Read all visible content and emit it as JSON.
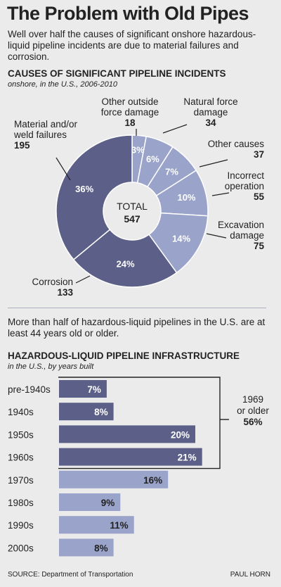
{
  "title": "The Problem with Old Pipes",
  "intro": "Well over half the causes of significant onshore hazardous-liquid pipeline incidents are due to material failures and corrosion.",
  "intro2": "More than half of hazardous-liquid pipelines in the U.S. are at least 44 years old or older.",
  "source": "SOURCE: Department of Transportation",
  "credit": "PAUL HORN",
  "colors": {
    "dark": "#5c5f87",
    "light": "#9aa3c9",
    "bg": "#ebebeb"
  },
  "chart_data": [
    {
      "type": "pie",
      "title": "CAUSES OF SIGNIFICANT PIPELINE INCIDENTS",
      "subtitle": "onshore, in the U.S., 2006-2010",
      "center_label": "TOTAL",
      "center_value": "547",
      "slices": [
        {
          "name_lines": [
            "Other outside",
            "force damage"
          ],
          "count": "18",
          "pct": "3%",
          "value": 3,
          "color": "#9aa3c9"
        },
        {
          "name_lines": [
            "Natural force",
            "damage"
          ],
          "count": "34",
          "pct": "6%",
          "value": 6,
          "color": "#9aa3c9"
        },
        {
          "name_lines": [
            "Other causes"
          ],
          "count": "37",
          "pct": "7%",
          "value": 7,
          "color": "#9aa3c9"
        },
        {
          "name_lines": [
            "Incorrect",
            "operation"
          ],
          "count": "55",
          "pct": "10%",
          "value": 10,
          "color": "#9aa3c9"
        },
        {
          "name_lines": [
            "Excavation",
            "damage"
          ],
          "count": "75",
          "pct": "14%",
          "value": 14,
          "color": "#9aa3c9"
        },
        {
          "name_lines": [
            "Corrosion"
          ],
          "count": "133",
          "pct": "24%",
          "value": 24,
          "color": "#5c5f87"
        },
        {
          "name_lines": [
            "Material and/or",
            "weld failures"
          ],
          "count": "195",
          "pct": "36%",
          "value": 36,
          "color": "#5c5f87"
        }
      ]
    },
    {
      "type": "bar",
      "orientation": "horizontal",
      "title": "HAZARDOUS-LIQUID PIPELINE INFRASTRUCTURE",
      "subtitle": "in the U.S., by years built",
      "categories": [
        "pre-1940s",
        "1940s",
        "1950s",
        "1960s",
        "1970s",
        "1980s",
        "1990s",
        "2000s"
      ],
      "values": [
        7,
        8,
        20,
        21,
        16,
        9,
        11,
        8
      ],
      "value_labels": [
        "7%",
        "8%",
        "20%",
        "21%",
        "16%",
        "9%",
        "11%",
        "8%"
      ],
      "colors": [
        "#5c5f87",
        "#5c5f87",
        "#5c5f87",
        "#5c5f87",
        "#9aa3c9",
        "#9aa3c9",
        "#9aa3c9",
        "#9aa3c9"
      ],
      "bracket_label_lines": [
        "1969",
        "or older"
      ],
      "bracket_value": "56%"
    }
  ]
}
